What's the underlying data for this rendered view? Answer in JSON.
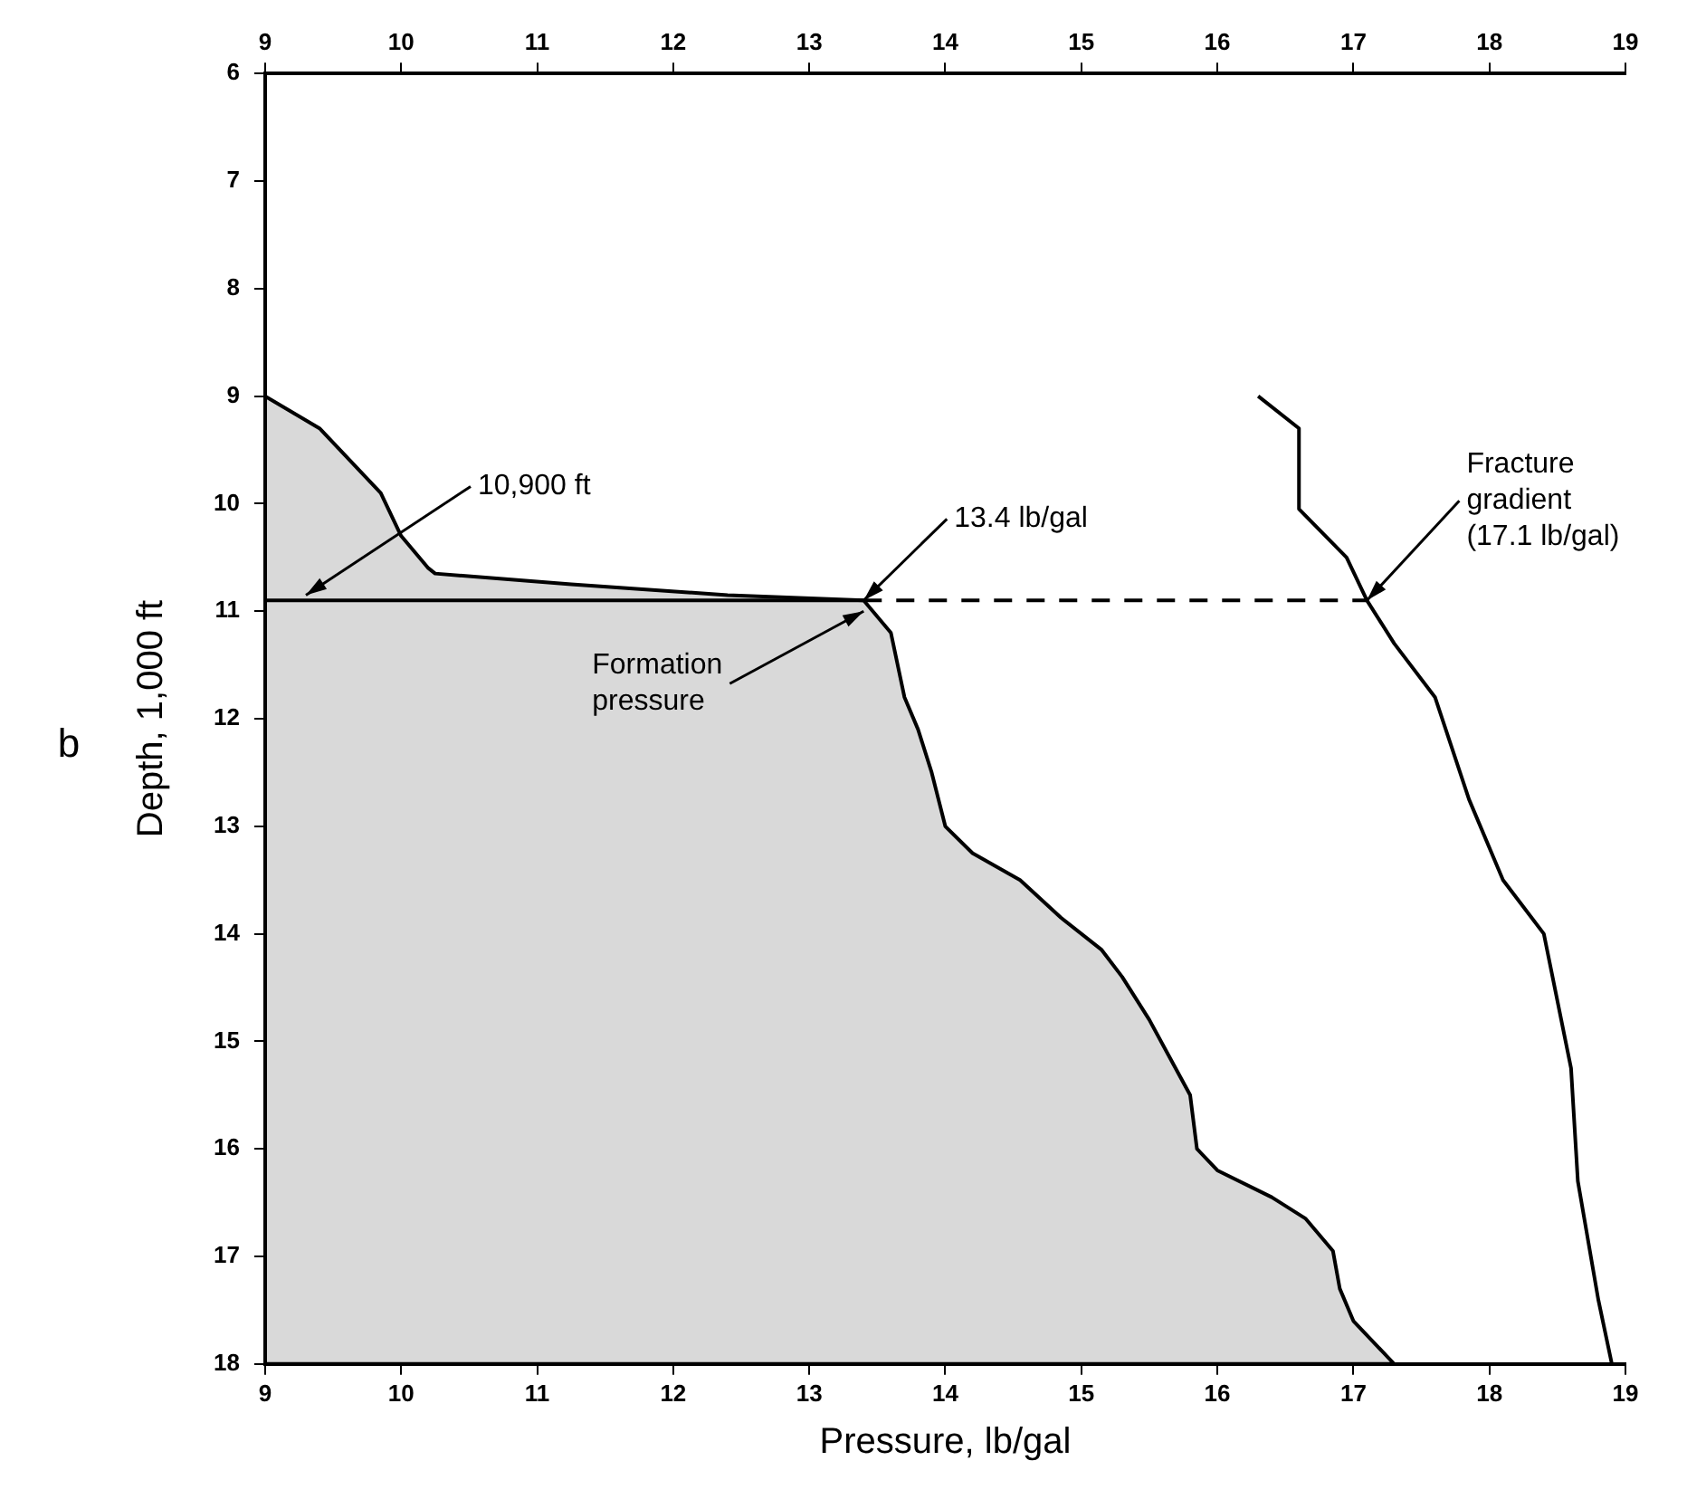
{
  "chart_data": {
    "type": "line",
    "xlabel": "Pressure, lb/gal",
    "ylabel": "Depth, 1,000 ft",
    "xlim": [
      9,
      19
    ],
    "xticks": [
      9,
      10,
      11,
      12,
      13,
      14,
      15,
      16,
      17,
      18,
      19
    ],
    "x2lim": [
      9,
      19
    ],
    "x2ticks": [
      9,
      10,
      11,
      12,
      13,
      14,
      15,
      16,
      17,
      18,
      19
    ],
    "ylim": [
      18,
      6
    ],
    "yticks": [
      6,
      7,
      8,
      9,
      10,
      11,
      12,
      13,
      14,
      15,
      16,
      17,
      18
    ],
    "grid": false,
    "legend": false,
    "marker": "none",
    "series": [
      {
        "type": "area",
        "color": "#000000",
        "x": [
          9.0,
          9.4,
          9.85,
          10.0,
          10.2,
          10.25,
          11.25,
          12.4,
          13.4,
          13.6,
          13.65,
          13.7,
          13.8,
          13.9,
          14.0,
          14.2,
          14.55,
          14.85,
          15.15,
          15.3,
          15.5,
          15.65,
          15.8,
          15.85,
          16.0,
          16.4,
          16.65,
          16.85,
          16.9,
          17.0,
          17.3,
          9
        ],
        "values": [
          9.0,
          9.3,
          9.9,
          10.3,
          10.6,
          10.65,
          10.75,
          10.85,
          10.9,
          11.2,
          11.5,
          11.8,
          12.1,
          12.5,
          13.0,
          13.25,
          13.5,
          13.85,
          14.15,
          14.4,
          14.8,
          15.15,
          15.5,
          16.0,
          16.2,
          16.45,
          16.65,
          16.95,
          17.3,
          17.6,
          18.0,
          18.0
        ]
      },
      {
        "color": "#000000",
        "x": [
          9,
          13.4
        ],
        "values": [
          10.9,
          10.9
        ]
      },
      {
        "color": "#000000",
        "line_style": "dashed",
        "x": [
          13.4,
          17.1
        ],
        "values": [
          10.9,
          10.9
        ]
      },
      {
        "color": "#000000",
        "x": [
          16.3,
          16.6,
          16.6,
          16.95,
          17.1,
          17.3,
          17.6,
          17.85,
          18.1,
          18.4,
          18.6,
          18.65,
          18.8,
          18.9
        ],
        "values": [
          9.0,
          9.3,
          10.05,
          10.5,
          10.9,
          11.3,
          11.8,
          12.75,
          13.5,
          14.0,
          15.25,
          16.3,
          17.4,
          18.0
        ]
      }
    ],
    "annotations": [
      {
        "text": "10,900 ft",
        "x": 9.3,
        "y": 10.85
      },
      {
        "text": "13.4 lb/gal",
        "x": 13.4,
        "y": 10.9
      },
      {
        "text": "Fracture\ngradient\n(17.1 lb/gal)",
        "x": 17.1,
        "y": 10.9
      },
      {
        "text": "Formation\npressure",
        "x": 13.4,
        "y": 11.0
      },
      "b"
    ]
  }
}
